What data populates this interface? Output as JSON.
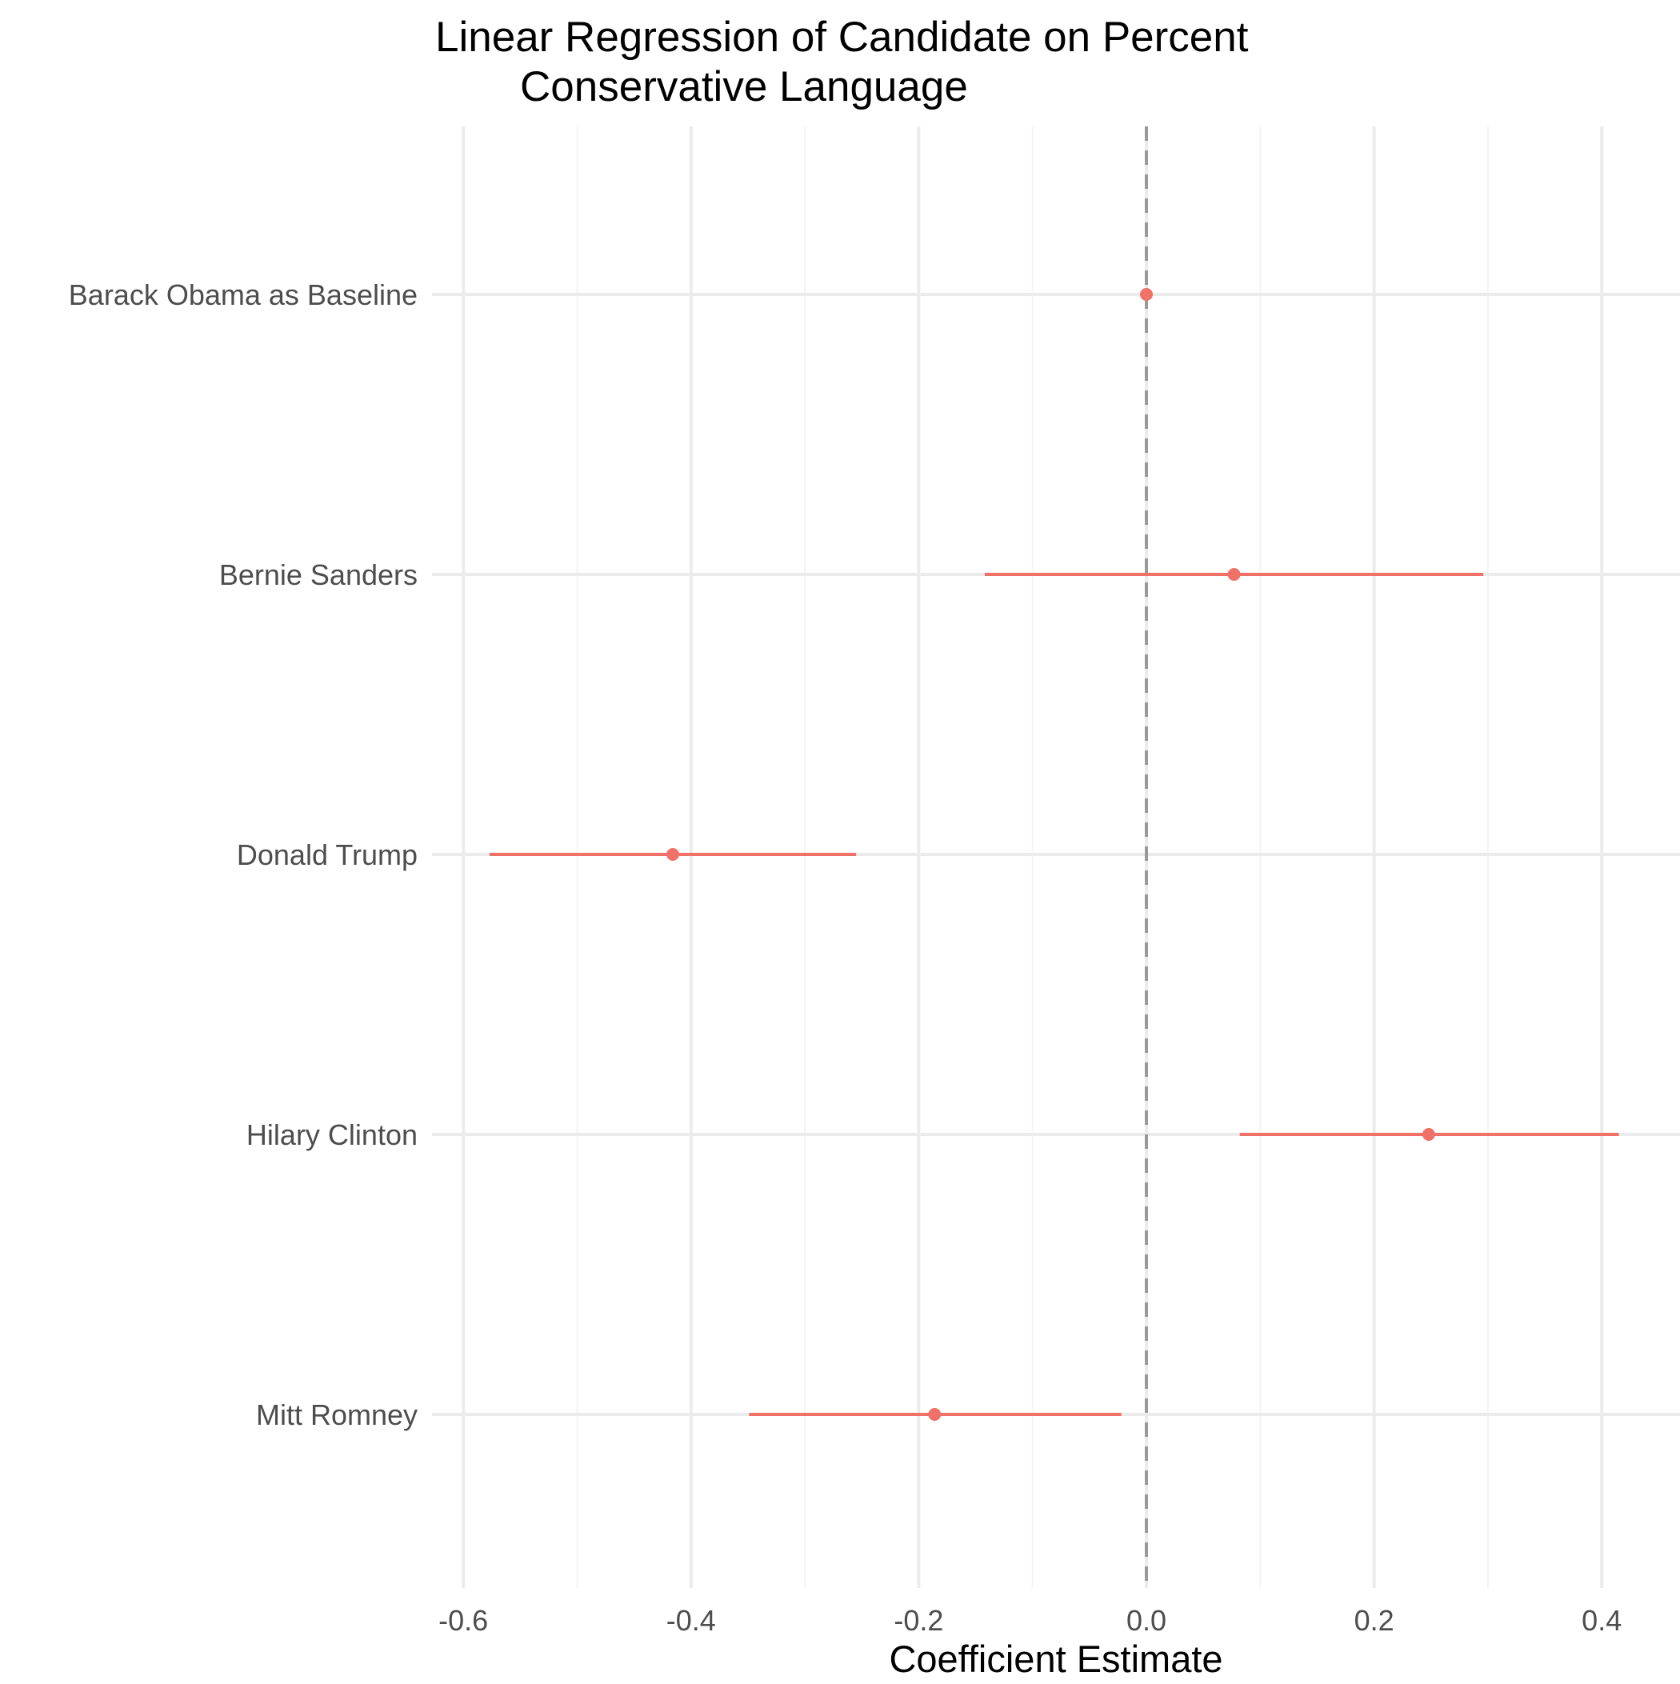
{
  "chart_data": {
    "type": "errorbar",
    "title_lines": [
      "Linear Regression of Candidate on Percent",
      "Conservative Language"
    ],
    "xlabel": "Coefficient Estimate",
    "ylabel": "",
    "xlim": [
      -0.62,
      0.465
    ],
    "x_ticks": [
      -0.6,
      -0.4,
      -0.2,
      0.0,
      0.2,
      0.4
    ],
    "x_tick_labels": [
      "-0.6",
      "-0.4",
      "-0.2",
      "0.0",
      "0.2",
      "0.4"
    ],
    "x_minor_ticks": [
      -0.5,
      -0.3,
      -0.1,
      0.1,
      0.3
    ],
    "reference_line": 0.0,
    "grid": true,
    "categories": [
      "Barack Obama as Baseline",
      "Bernie Sanders",
      "Donald Trump",
      "Hilary Clinton",
      "Mitt Romney"
    ],
    "series": [
      {
        "estimates": [
          0.0,
          0.077,
          -0.416,
          0.248,
          -0.186
        ],
        "lower": [
          0.0,
          -0.142,
          -0.577,
          0.082,
          -0.349
        ],
        "upper": [
          0.0,
          0.296,
          -0.255,
          0.415,
          -0.022
        ]
      }
    ],
    "colors": {
      "point": "#f07167",
      "reference": "#999999",
      "grid_major": "#ebebeb",
      "grid_minor": "#f4f4f4",
      "tick_text": "#4d4d4d",
      "title": "#000000"
    }
  }
}
